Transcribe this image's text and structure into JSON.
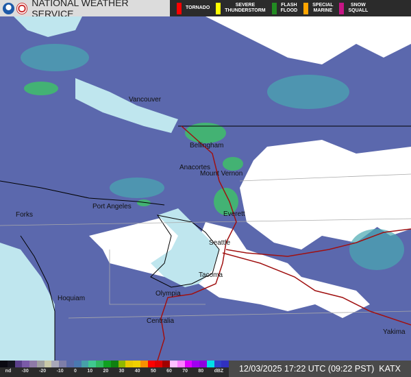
{
  "header": {
    "title": "NATIONAL WEATHER SERVICE",
    "logos": [
      "NOAA",
      "NWS"
    ],
    "warnings": [
      {
        "label": "TORNADO",
        "color": "#ff0000"
      },
      {
        "label": "SEVERE\nTHUNDERSTORM",
        "color": "#ffff00"
      },
      {
        "label": "FLASH\nFLOOD",
        "color": "#228b22"
      },
      {
        "label": "SPECIAL\nMARINE",
        "color": "#ffa500"
      },
      {
        "label": "SNOW\nSQUALL",
        "color": "#c71585"
      }
    ]
  },
  "map": {
    "water_color": "#bfe6ee",
    "land_color": "#ffffff",
    "radar_color": "#5b68ad",
    "cities": [
      "Vancouver",
      "Bellingham",
      "Anacortes",
      "Mount Vernon",
      "Port Angeles",
      "Forks",
      "Everett",
      "Seattle",
      "Tacoma",
      "Olympia",
      "Hoquiam",
      "Centralia",
      "Yakima"
    ]
  },
  "legend": {
    "ticks": [
      "nd",
      "-30",
      "-20",
      "-10",
      "0",
      "10",
      "20",
      "30",
      "40",
      "50",
      "60",
      "70",
      "80",
      "dBZ"
    ],
    "colors": [
      "#0a0a12",
      "#151520",
      "#5a3f8a",
      "#7a5aa8",
      "#8e7aa8",
      "#a0a0a0",
      "#c8c8a8",
      "#a8a8b8",
      "#7e7ea8",
      "#5a6aa8",
      "#4a78b0",
      "#46a0a8",
      "#40c890",
      "#30b860",
      "#10a020",
      "#108010",
      "#90b800",
      "#e8c800",
      "#f0d000",
      "#f89000",
      "#ff0000",
      "#e00000",
      "#a00000",
      "#ffc0ff",
      "#ff80ff",
      "#e000ff",
      "#a000f0",
      "#9000e0",
      "#00e0e8",
      "#3040c8",
      "#3030c0"
    ]
  },
  "footer": {
    "timestamp": "12/03/2025 17:22 UTC (09:22 PST)",
    "station": "KATX"
  }
}
